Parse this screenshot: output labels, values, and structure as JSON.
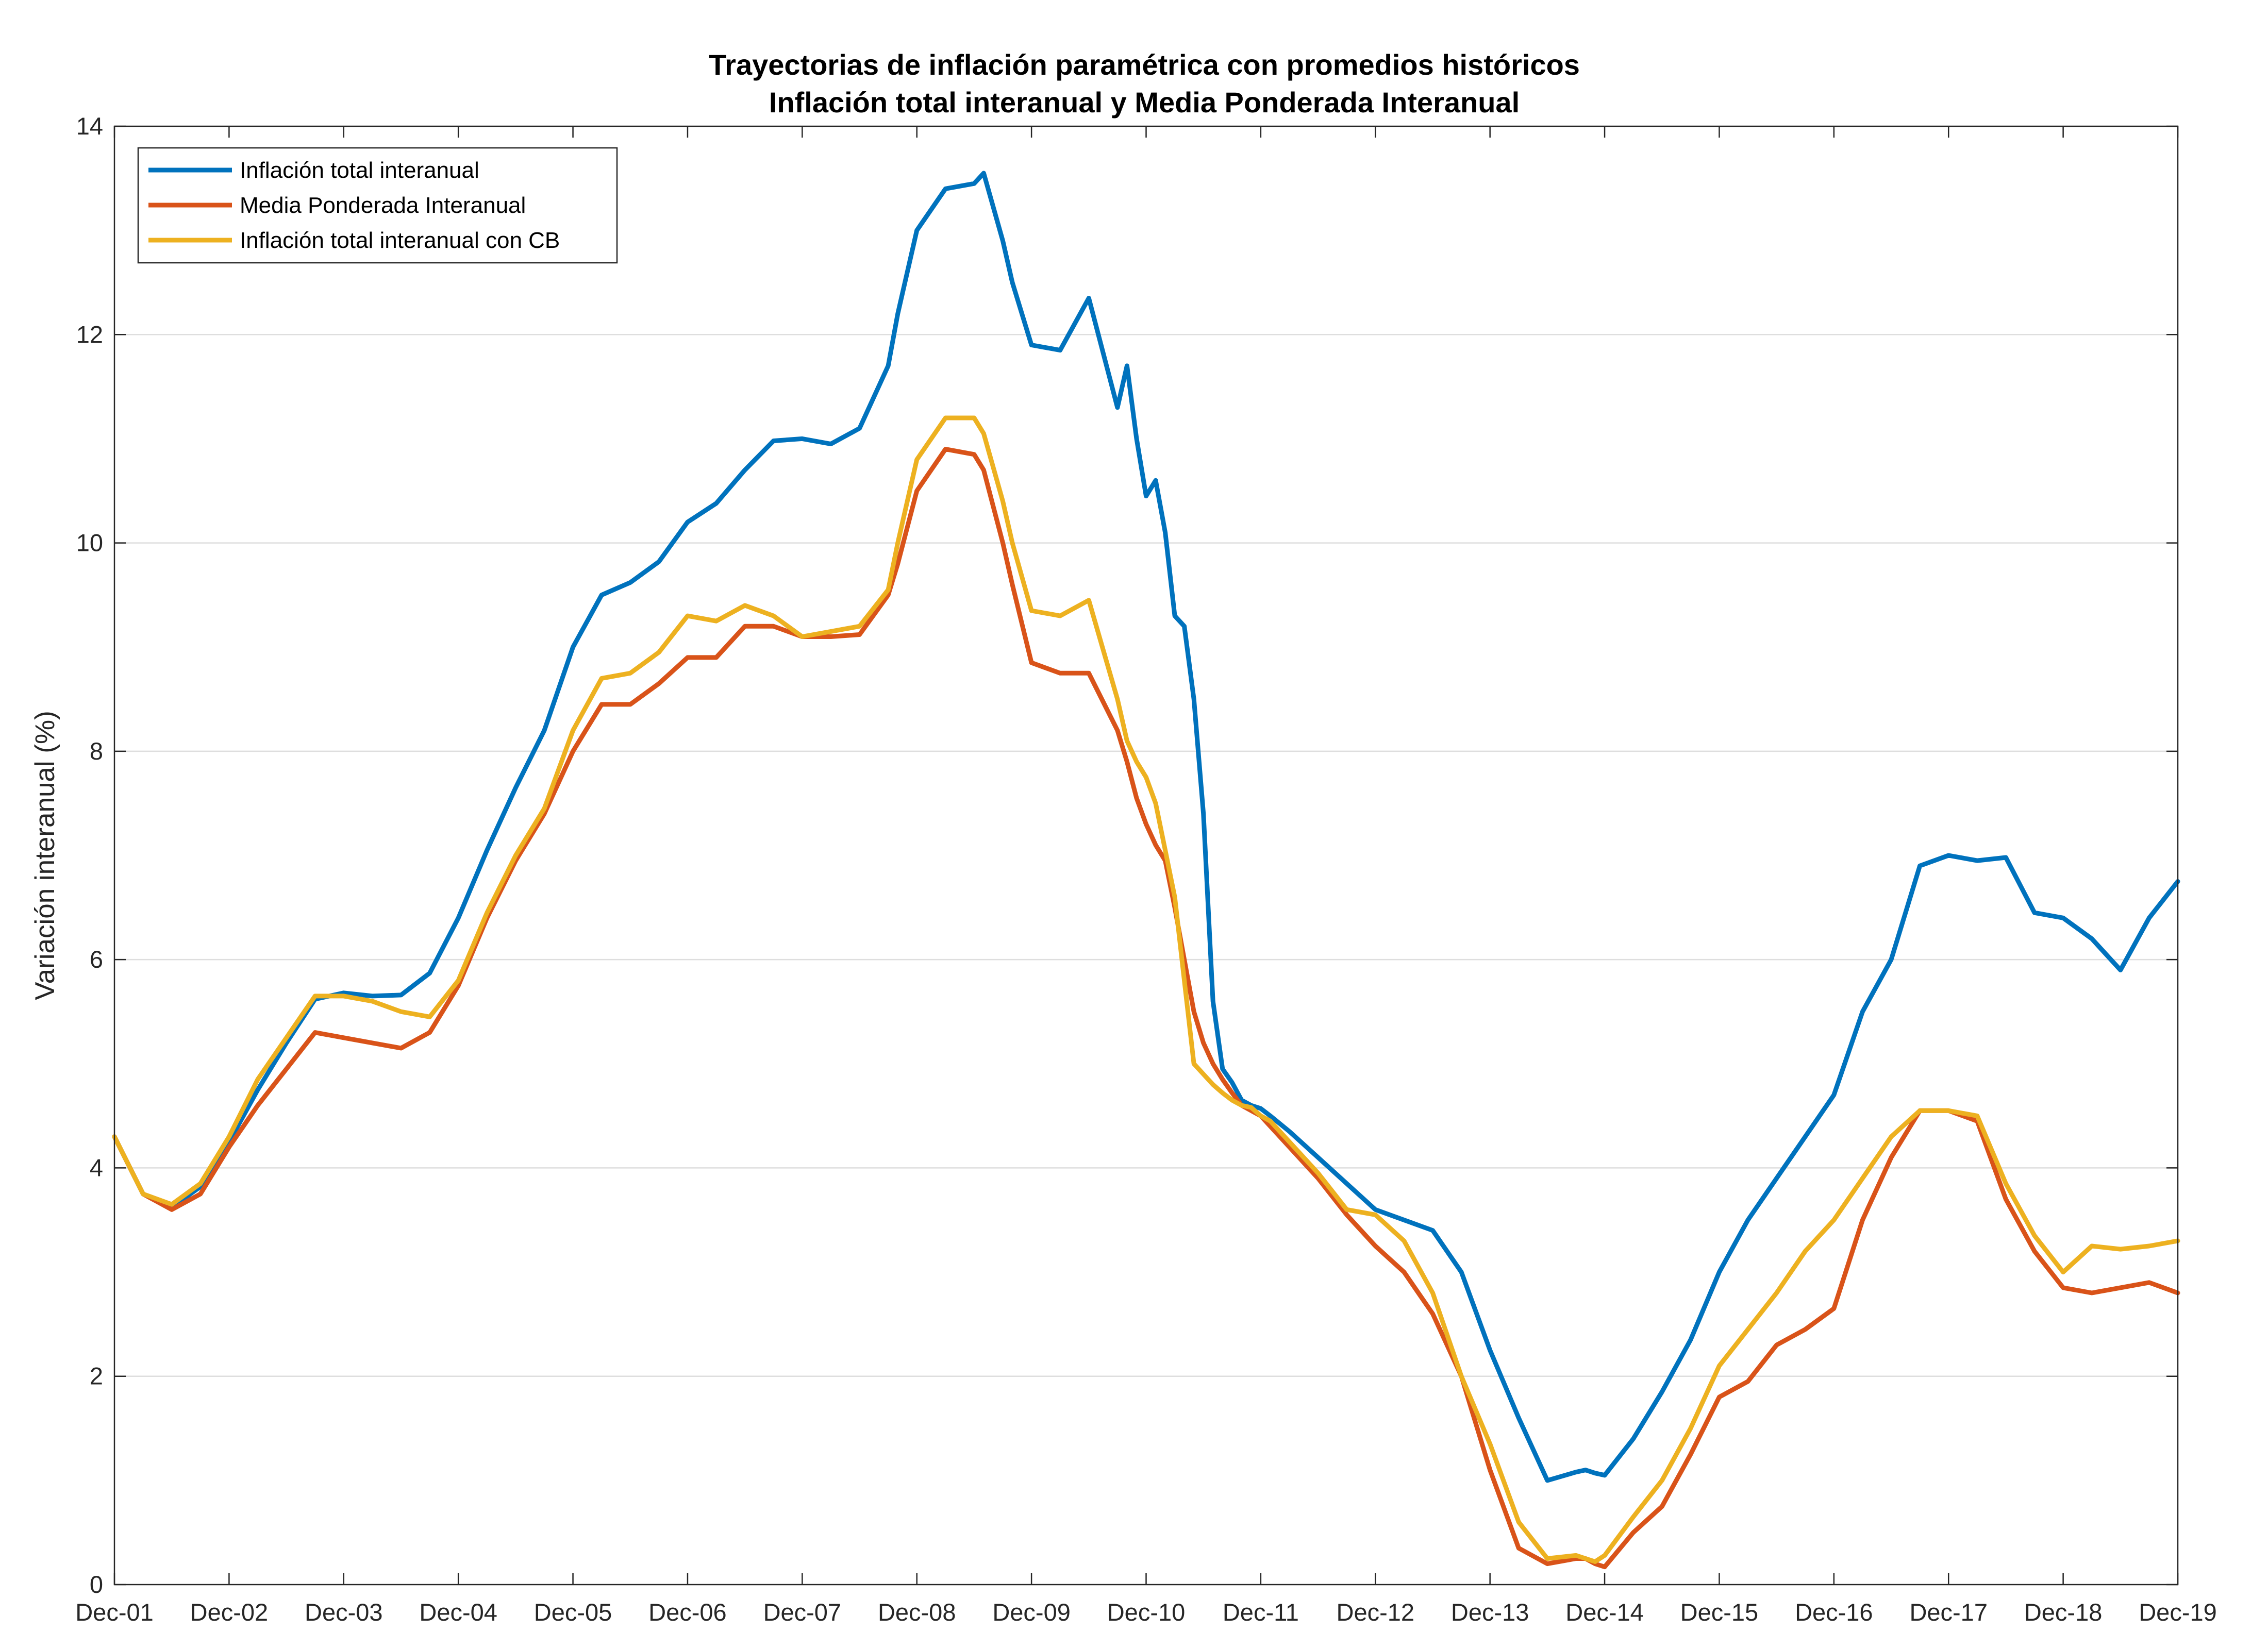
{
  "chart_data": {
    "type": "line",
    "title": "Trayectorias de inflación paramétrica con promedios históricos",
    "subtitle": "Inflación total interanual y Media Ponderada Interanual",
    "xlabel": "",
    "ylabel": "Variación interanual (%)",
    "ylim": [
      0,
      14
    ],
    "yticks": [
      "0",
      "2",
      "4",
      "6",
      "8",
      "10",
      "12",
      "14"
    ],
    "x_start": "Dec-01",
    "x_end": "Dec-19",
    "x_tick_labels": [
      "Dec-01",
      "Dec-02",
      "Dec-03",
      "Dec-04",
      "Dec-05",
      "Dec-06",
      "Dec-07",
      "Dec-08",
      "Dec-09",
      "Dec-10",
      "Dec-11",
      "Dec-12",
      "Dec-13",
      "Dec-14",
      "Dec-15",
      "Dec-16",
      "Dec-17",
      "Dec-18",
      "Dec-19"
    ],
    "grid": true,
    "legend_position": "top-left",
    "series": [
      {
        "name": "Inflación total interanual",
        "color": "#0072BD",
        "x": [
          "Dec-01",
          "Mar-02",
          "Jun-02",
          "Sep-02",
          "Dec-02",
          "Mar-03",
          "Jun-03",
          "Sep-03",
          "Dec-03",
          "Mar-04",
          "Jun-04",
          "Sep-04",
          "Dec-04",
          "Mar-05",
          "Jun-05",
          "Sep-05",
          "Dec-05",
          "Mar-06",
          "Jun-06",
          "Sep-06",
          "Dec-06",
          "Mar-07",
          "Jun-07",
          "Sep-07",
          "Dec-07",
          "Mar-08",
          "Jun-08",
          "Sep-08",
          "Oct-08",
          "Dec-08",
          "Mar-09",
          "Jun-09",
          "Jul-09",
          "Sep-09",
          "Oct-09",
          "Dec-09",
          "Mar-10",
          "Jun-10",
          "Sep-10",
          "Oct-10",
          "Nov-10",
          "Dec-10",
          "Jan-11",
          "Feb-11",
          "Mar-11",
          "Apr-11",
          "May-11",
          "Jun-11",
          "Jul-11",
          "Aug-11",
          "Sep-11",
          "Oct-11",
          "Nov-11",
          "Dec-11",
          "Jan-12",
          "Mar-12",
          "Jun-12",
          "Sep-12",
          "Dec-12",
          "Mar-13",
          "Jun-13",
          "Sep-13",
          "Dec-13",
          "Mar-14",
          "Jun-14",
          "Sep-14",
          "Oct-14",
          "Nov-14",
          "Dec-14",
          "Mar-15",
          "Jun-15",
          "Sep-15",
          "Dec-15",
          "Mar-16",
          "Jun-16",
          "Sep-16",
          "Dec-16",
          "Mar-17",
          "Jun-17",
          "Sep-17",
          "Dec-17",
          "Mar-18",
          "Jun-18",
          "Sep-18",
          "Dec-18",
          "Mar-19",
          "Jun-19",
          "Sep-19",
          "Dec-19"
        ],
        "values": [
          4.3,
          3.75,
          3.62,
          3.82,
          4.25,
          4.75,
          5.2,
          5.62,
          5.68,
          5.65,
          5.66,
          5.87,
          6.4,
          7.05,
          7.65,
          8.2,
          9.0,
          9.5,
          9.62,
          9.82,
          10.2,
          10.38,
          10.7,
          10.98,
          11.0,
          10.95,
          11.1,
          11.7,
          12.2,
          13.0,
          13.4,
          13.45,
          13.55,
          12.9,
          12.5,
          11.9,
          11.85,
          12.35,
          11.3,
          11.7,
          11.0,
          10.45,
          10.6,
          10.1,
          9.3,
          9.2,
          8.5,
          7.4,
          5.6,
          4.95,
          4.82,
          4.65,
          4.6,
          4.57,
          4.5,
          4.35,
          4.1,
          3.85,
          3.6,
          3.5,
          3.4,
          3.0,
          2.25,
          1.6,
          1.0,
          1.08,
          1.1,
          1.07,
          1.05,
          1.4,
          1.85,
          2.35,
          3.0,
          3.5,
          3.9,
          4.3,
          4.7,
          5.5,
          6.0,
          6.9,
          7.0,
          6.95,
          6.98,
          6.45,
          6.4,
          6.2,
          5.9,
          6.4,
          6.75
        ]
      },
      {
        "name": "Media Ponderada Interanual",
        "color": "#D95319",
        "x": [
          "Dec-01",
          "Mar-02",
          "Jun-02",
          "Sep-02",
          "Dec-02",
          "Mar-03",
          "Jun-03",
          "Sep-03",
          "Dec-03",
          "Mar-04",
          "Jun-04",
          "Sep-04",
          "Dec-04",
          "Mar-05",
          "Jun-05",
          "Sep-05",
          "Dec-05",
          "Mar-06",
          "Jun-06",
          "Sep-06",
          "Dec-06",
          "Mar-07",
          "Jun-07",
          "Sep-07",
          "Dec-07",
          "Mar-08",
          "Jun-08",
          "Sep-08",
          "Oct-08",
          "Dec-08",
          "Mar-09",
          "Jun-09",
          "Jul-09",
          "Sep-09",
          "Oct-09",
          "Dec-09",
          "Mar-10",
          "Jun-10",
          "Sep-10",
          "Oct-10",
          "Nov-10",
          "Dec-10",
          "Jan-11",
          "Feb-11",
          "Mar-11",
          "Apr-11",
          "May-11",
          "Jun-11",
          "Jul-11",
          "Aug-11",
          "Sep-11",
          "Oct-11",
          "Nov-11",
          "Dec-11",
          "Jan-12",
          "Mar-12",
          "Jun-12",
          "Sep-12",
          "Dec-12",
          "Mar-13",
          "Jun-13",
          "Sep-13",
          "Dec-13",
          "Mar-14",
          "Jun-14",
          "Sep-14",
          "Oct-14",
          "Nov-14",
          "Dec-14",
          "Mar-15",
          "Jun-15",
          "Sep-15",
          "Dec-15",
          "Mar-16",
          "Jun-16",
          "Sep-16",
          "Dec-16",
          "Mar-17",
          "Jun-17",
          "Sep-17",
          "Dec-17",
          "Mar-18",
          "Jun-18",
          "Sep-18",
          "Dec-18",
          "Mar-19",
          "Jun-19",
          "Sep-19",
          "Dec-19"
        ],
        "values": [
          4.3,
          3.75,
          3.6,
          3.75,
          4.2,
          4.6,
          4.95,
          5.3,
          5.25,
          5.2,
          5.15,
          5.3,
          5.75,
          6.4,
          6.95,
          7.4,
          8.0,
          8.45,
          8.45,
          8.65,
          8.9,
          8.9,
          9.2,
          9.2,
          9.1,
          9.1,
          9.12,
          9.5,
          9.8,
          10.5,
          10.9,
          10.85,
          10.7,
          10.0,
          9.6,
          8.85,
          8.75,
          8.75,
          8.2,
          7.9,
          7.55,
          7.3,
          7.1,
          6.95,
          6.5,
          6.0,
          5.5,
          5.2,
          5.0,
          4.85,
          4.72,
          4.6,
          4.55,
          4.5,
          4.4,
          4.2,
          3.9,
          3.55,
          3.25,
          3.0,
          2.6,
          2.0,
          1.1,
          0.35,
          0.2,
          0.25,
          0.25,
          0.2,
          0.17,
          0.5,
          0.75,
          1.25,
          1.8,
          1.95,
          2.3,
          2.45,
          2.65,
          3.5,
          4.1,
          4.55,
          4.55,
          4.45,
          3.7,
          3.2,
          2.85,
          2.8,
          2.85,
          2.9,
          2.8
        ]
      },
      {
        "name": "Inflación total interanual con CB",
        "color": "#EDB120",
        "x": [
          "Dec-01",
          "Mar-02",
          "Jun-02",
          "Sep-02",
          "Dec-02",
          "Mar-03",
          "Jun-03",
          "Sep-03",
          "Dec-03",
          "Mar-04",
          "Jun-04",
          "Sep-04",
          "Dec-04",
          "Mar-05",
          "Jun-05",
          "Sep-05",
          "Dec-05",
          "Mar-06",
          "Jun-06",
          "Sep-06",
          "Dec-06",
          "Mar-07",
          "Jun-07",
          "Sep-07",
          "Dec-07",
          "Mar-08",
          "Jun-08",
          "Sep-08",
          "Oct-08",
          "Dec-08",
          "Mar-09",
          "Jun-09",
          "Jul-09",
          "Sep-09",
          "Oct-09",
          "Dec-09",
          "Mar-10",
          "Jun-10",
          "Sep-10",
          "Oct-10",
          "Nov-10",
          "Dec-10",
          "Jan-11",
          "Feb-11",
          "Mar-11",
          "Apr-11",
          "May-11",
          "Jun-11",
          "Jul-11",
          "Aug-11",
          "Sep-11",
          "Oct-11",
          "Nov-11",
          "Dec-11",
          "Jan-12",
          "Mar-12",
          "Jun-12",
          "Sep-12",
          "Dec-12",
          "Mar-13",
          "Jun-13",
          "Sep-13",
          "Dec-13",
          "Mar-14",
          "Jun-14",
          "Sep-14",
          "Oct-14",
          "Nov-14",
          "Dec-14",
          "Mar-15",
          "Jun-15",
          "Sep-15",
          "Dec-15",
          "Mar-16",
          "Jun-16",
          "Sep-16",
          "Dec-16",
          "Mar-17",
          "Jun-17",
          "Sep-17",
          "Dec-17",
          "Mar-18",
          "Jun-18",
          "Sep-18",
          "Dec-18",
          "Mar-19",
          "Jun-19",
          "Sep-19",
          "Dec-19"
        ],
        "values": [
          4.3,
          3.75,
          3.65,
          3.85,
          4.3,
          4.85,
          5.25,
          5.65,
          5.65,
          5.6,
          5.5,
          5.45,
          5.8,
          6.45,
          7.0,
          7.45,
          8.2,
          8.7,
          8.75,
          8.95,
          9.3,
          9.25,
          9.4,
          9.3,
          9.1,
          9.15,
          9.2,
          9.55,
          10.0,
          10.8,
          11.2,
          11.2,
          11.05,
          10.4,
          10.0,
          9.35,
          9.3,
          9.45,
          8.5,
          8.1,
          7.9,
          7.75,
          7.5,
          7.05,
          6.6,
          5.8,
          5.0,
          4.9,
          4.8,
          4.72,
          4.65,
          4.6,
          4.58,
          4.5,
          4.45,
          4.25,
          3.95,
          3.6,
          3.55,
          3.3,
          2.8,
          2.0,
          1.35,
          0.6,
          0.25,
          0.28,
          0.25,
          0.22,
          0.28,
          0.65,
          1.0,
          1.5,
          2.1,
          2.45,
          2.8,
          3.2,
          3.5,
          3.9,
          4.3,
          4.55,
          4.55,
          4.5,
          3.85,
          3.35,
          3.0,
          3.25,
          3.22,
          3.25,
          3.3
        ]
      }
    ]
  }
}
